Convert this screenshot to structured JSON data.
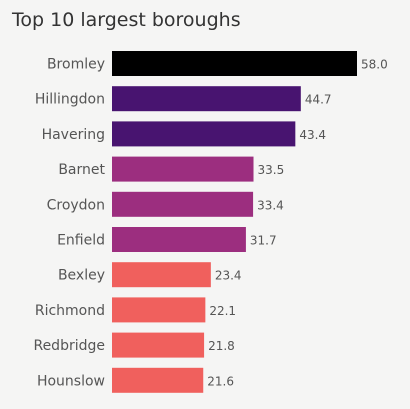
{
  "chart_data": {
    "type": "bar",
    "orientation": "horizontal",
    "title": "Top 10 largest boroughs",
    "xlabel": "",
    "ylabel": "",
    "categories": [
      "Bromley",
      "Hillingdon",
      "Havering",
      "Barnet",
      "Croydon",
      "Enfield",
      "Bexley",
      "Richmond",
      "Redbridge",
      "Hounslow"
    ],
    "values": [
      58.0,
      44.7,
      43.4,
      33.5,
      33.4,
      31.7,
      23.4,
      22.1,
      21.8,
      21.6
    ],
    "value_labels": [
      "58.0",
      "44.7",
      "43.4",
      "33.5",
      "33.4",
      "31.7",
      "23.4",
      "22.1",
      "21.8",
      "21.6"
    ],
    "bar_colors": [
      "#000000",
      "#481470",
      "#481470",
      "#9c2e7f",
      "#9c2e7f",
      "#9c2e7f",
      "#f0605d",
      "#f0605d",
      "#f0605d",
      "#f0605d"
    ],
    "xlim": [
      0,
      58.0
    ],
    "grid": false,
    "legend": "none"
  }
}
